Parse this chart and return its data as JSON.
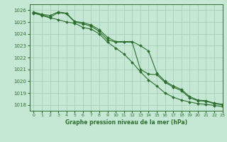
{
  "title": "Graphe pression niveau de la mer (hPa)",
  "background_color": "#c5e8d5",
  "grid_color": "#a8cdb8",
  "line_color": "#2d6e2d",
  "marker_color": "#2d6e2d",
  "xlim": [
    -0.5,
    23
  ],
  "ylim": [
    1017.5,
    1026.5
  ],
  "yticks": [
    1018,
    1019,
    1020,
    1021,
    1022,
    1023,
    1024,
    1025,
    1026
  ],
  "xticks": [
    0,
    1,
    2,
    3,
    4,
    5,
    6,
    7,
    8,
    9,
    10,
    11,
    12,
    13,
    14,
    15,
    16,
    17,
    18,
    19,
    20,
    21,
    22,
    23
  ],
  "series": [
    [
      1025.8,
      1025.6,
      1025.4,
      1025.8,
      1025.7,
      1025.0,
      1024.85,
      1024.65,
      1024.2,
      1023.5,
      1023.3,
      1023.3,
      1023.3,
      1021.0,
      1020.6,
      1020.55,
      1019.9,
      1019.5,
      1019.2,
      1018.6,
      1018.35,
      1018.3,
      1018.1,
      1018.0
    ],
    [
      1025.75,
      1025.55,
      1025.35,
      1025.2,
      1025.0,
      1024.9,
      1024.55,
      1024.4,
      1024.0,
      1023.3,
      1022.8,
      1022.3,
      1021.6,
      1020.8,
      1020.1,
      1019.6,
      1019.0,
      1018.65,
      1018.4,
      1018.25,
      1018.1,
      1018.05,
      1017.95,
      1017.85
    ],
    [
      1025.85,
      1025.65,
      1025.55,
      1025.85,
      1025.75,
      1025.05,
      1024.95,
      1024.75,
      1024.35,
      1023.7,
      1023.35,
      1023.35,
      1023.35,
      1023.0,
      1022.55,
      1020.7,
      1020.0,
      1019.6,
      1019.3,
      1018.7,
      1018.4,
      1018.35,
      1018.15,
      1018.05
    ]
  ]
}
